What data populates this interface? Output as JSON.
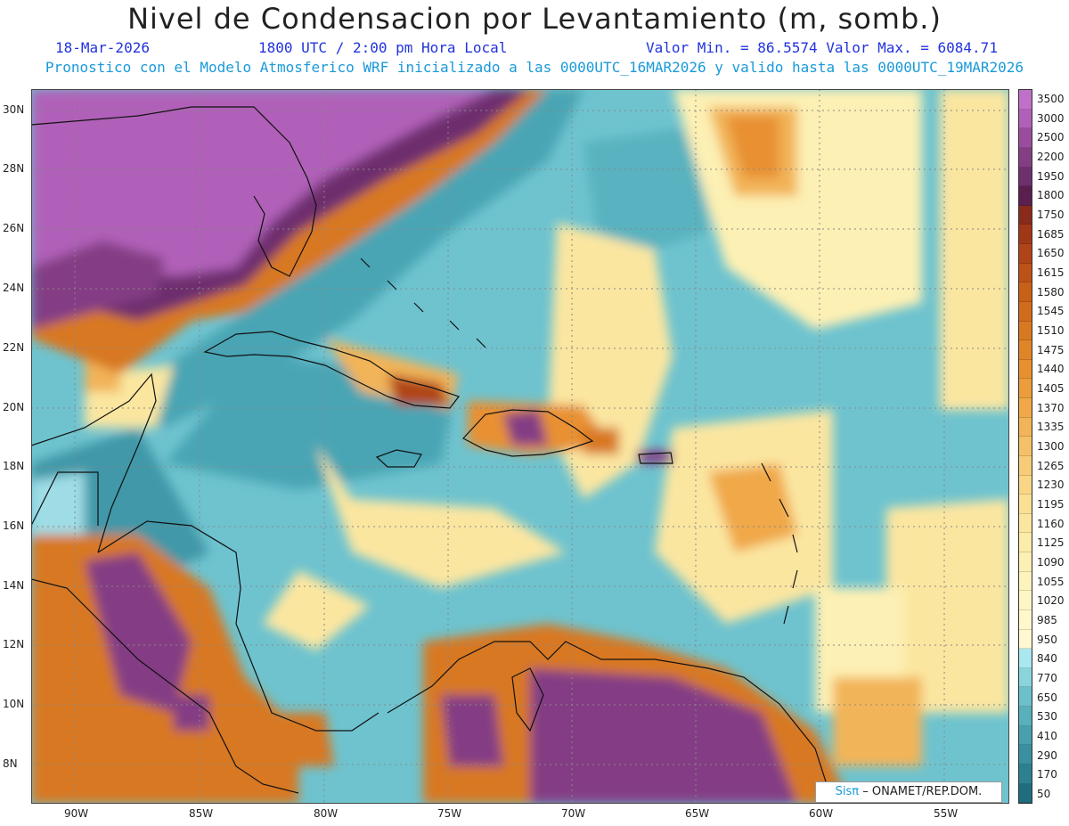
{
  "header": {
    "title": "Nivel de Condensacion por Levantamiento (m, somb.)",
    "date": "18-Mar-2026",
    "time": "1800 UTC / 2:00 pm Hora Local",
    "minmax": "Valor Min. = 86.5574   Valor Max. = 6084.71",
    "forecast_line": "Pronostico con el Modelo Atmosferico WRF inicializado a las 0000UTC_16MAR2026 y valido hasta las  0000UTC_19MAR2026"
  },
  "axes": {
    "lon_labels": [
      "90W",
      "85W",
      "80W",
      "75W",
      "70W",
      "65W",
      "60W",
      "55W"
    ],
    "lat_labels": [
      "30N",
      "28N",
      "26N",
      "24N",
      "22N",
      "20N",
      "18N",
      "16N",
      "14N",
      "12N",
      "10N",
      "8N"
    ]
  },
  "legend": {
    "labels": [
      "3500",
      "3000",
      "2500",
      "2200",
      "1950",
      "1800",
      "1750",
      "1685",
      "1650",
      "1615",
      "1580",
      "1545",
      "1510",
      "1475",
      "1440",
      "1405",
      "1370",
      "1335",
      "1300",
      "1265",
      "1230",
      "1195",
      "1160",
      "1125",
      "1090",
      "1055",
      "1020",
      "985",
      "950",
      "840",
      "770",
      "650",
      "530",
      "410",
      "290",
      "170",
      "50"
    ],
    "colors": [
      "#c070c8",
      "#b060b8",
      "#9a4d9e",
      "#843e84",
      "#6e2f6e",
      "#5a1f4e",
      "#8a2a1a",
      "#a03818",
      "#b04416",
      "#bd5216",
      "#c86018",
      "#d06c1c",
      "#d87820",
      "#e08428",
      "#e89030",
      "#ec9c3a",
      "#f0a848",
      "#f2b458",
      "#f4c068",
      "#f6cc78",
      "#f8d686",
      "#fadf94",
      "#fbe6a0",
      "#fcecaa",
      "#fdf0b4",
      "#fdf3bc",
      "#fef6c4",
      "#fef8cc",
      "#fff8d0",
      "#a8e8ee",
      "#8ad4dc",
      "#6cc0ca",
      "#58b0bc",
      "#48a0ae",
      "#3a90a0",
      "#2c8090",
      "#1e6e80"
    ]
  },
  "credit": {
    "pi_logo": "Sisπ",
    "text": "– ONAMET/REP.DOM."
  },
  "colors": {
    "land_outline": "#111111",
    "sea_base": "#5fb9c6",
    "grid": "#888888"
  }
}
